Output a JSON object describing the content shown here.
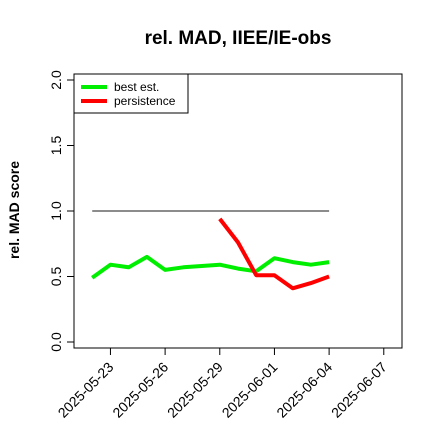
{
  "chart_data": {
    "type": "line",
    "title": "rel. MAD, IIEE/IE-obs",
    "xlabel": "",
    "ylabel": "rel. MAD score",
    "ylim": [
      0.0,
      2.0
    ],
    "yticks": [
      "0.0",
      "0.5",
      "1.0",
      "1.5",
      "2.0"
    ],
    "xlim": [
      "2025-05-21",
      "2025-06-08"
    ],
    "xticks": [
      "2025-05-23",
      "2025-05-26",
      "2025-05-29",
      "2025-06-01",
      "2025-06-04",
      "2025-06-07"
    ],
    "legend_position": "top-left",
    "reference_line": {
      "y": 1.0,
      "x_from": "2025-05-22",
      "x_to": "2025-06-04",
      "color": "#666666"
    },
    "series": [
      {
        "name": "best est.",
        "color": "#00ee00",
        "x": [
          "2025-05-22",
          "2025-05-23",
          "2025-05-24",
          "2025-05-25",
          "2025-05-26",
          "2025-05-27",
          "2025-05-28",
          "2025-05-29",
          "2025-05-30",
          "2025-05-31",
          "2025-06-01",
          "2025-06-02",
          "2025-06-03",
          "2025-06-04"
        ],
        "values": [
          0.49,
          0.59,
          0.57,
          0.65,
          0.55,
          0.57,
          0.58,
          0.59,
          0.56,
          0.54,
          0.64,
          0.61,
          0.59,
          0.61
        ]
      },
      {
        "name": "persistence",
        "color": "#ff0000",
        "x": [
          "2025-05-29",
          "2025-05-30",
          "2025-05-31",
          "2025-06-01",
          "2025-06-02",
          "2025-06-03",
          "2025-06-04"
        ],
        "values": [
          0.94,
          0.76,
          0.51,
          0.51,
          0.41,
          0.45,
          0.5
        ]
      }
    ]
  }
}
